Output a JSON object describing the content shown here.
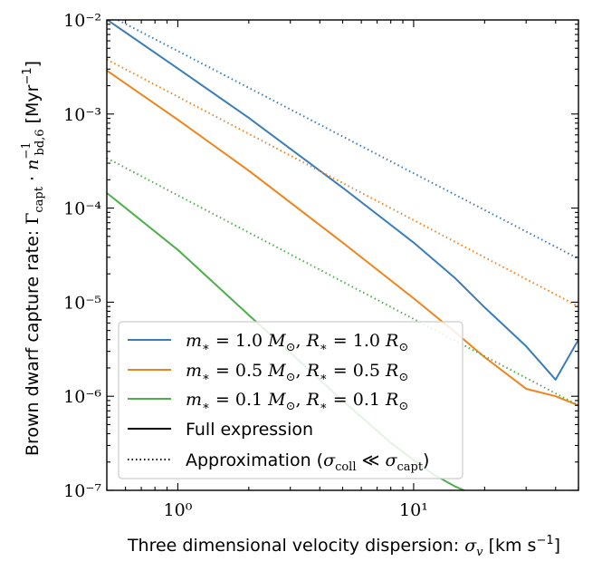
{
  "chart_data": {
    "type": "line",
    "xlabel": "Three dimensional velocity dispersion: σ_v [km s⁻¹]",
    "ylabel": "Brown dwarf capture rate: Γ_capt · n_bd,6⁻¹ [Myr⁻¹]",
    "x_scale": "log",
    "y_scale": "log",
    "xlim": [
      0.5,
      50
    ],
    "ylim": [
      1e-07,
      0.01
    ],
    "x_tick_labels": [
      "10⁰",
      "10¹"
    ],
    "y_tick_labels": [
      "10⁻⁷",
      "10⁻⁶",
      "10⁻⁵",
      "10⁻⁴",
      "10⁻³",
      "10⁻²"
    ],
    "grid": false,
    "legend_position": "lower-left",
    "legend_style_entries": {
      "full": "Full expression",
      "approx": "Approximation (σ_coll ≪ σ_capt)"
    },
    "series": [
      {
        "name": "m* = 1.0 M⊙, R* = 1.0 R⊙",
        "color": "#3a7db8",
        "style": "solid",
        "x": [
          0.5,
          1,
          2,
          5,
          10,
          15,
          20,
          30,
          40,
          50
        ],
        "y": [
          0.0101,
          0.00305,
          0.00091,
          0.000165,
          4.3e-05,
          1.8e-05,
          8.8e-06,
          3.4e-06,
          1.5e-06,
          4e-06
        ]
      },
      {
        "name": "m* = 1.0 M⊙, R* = 1.0 R⊙",
        "color": "#3a7db8",
        "style": "dotted",
        "x": [
          0.5,
          50
        ],
        "y": [
          0.0115,
          2.9e-05
        ]
      },
      {
        "name": "m* = 0.5 M⊙, R* = 0.5 R⊙",
        "color": "#f0841a",
        "style": "solid",
        "x": [
          0.5,
          1,
          2,
          5,
          10,
          15,
          20,
          30,
          40,
          50
        ],
        "y": [
          0.0029,
          0.00087,
          0.00025,
          4.3e-05,
          1.1e-05,
          4.8e-06,
          2.6e-06,
          1.2e-06,
          1e-06,
          8e-07
        ]
      },
      {
        "name": "m* = 0.5 M⊙, R* = 0.5 R⊙",
        "color": "#f0841a",
        "style": "dotted",
        "x": [
          0.5,
          50
        ],
        "y": [
          0.0038,
          9e-06
        ]
      },
      {
        "name": "m* = 0.1 M⊙, R* = 0.1 R⊙",
        "color": "#4daf4a",
        "style": "solid",
        "x": [
          0.5,
          1,
          2,
          3,
          5,
          8,
          10,
          12,
          15,
          18
        ],
        "y": [
          0.000145,
          3.6e-05,
          7.3e-06,
          2.9e-06,
          9e-07,
          3.2e-07,
          2.1e-07,
          1.5e-07,
          1.1e-07,
          9e-08
        ]
      },
      {
        "name": "m* = 0.1 M⊙, R* = 0.1 R⊙",
        "color": "#4daf4a",
        "style": "dotted",
        "x": [
          0.5,
          50
        ],
        "y": [
          0.00034,
          8e-07
        ]
      }
    ]
  }
}
